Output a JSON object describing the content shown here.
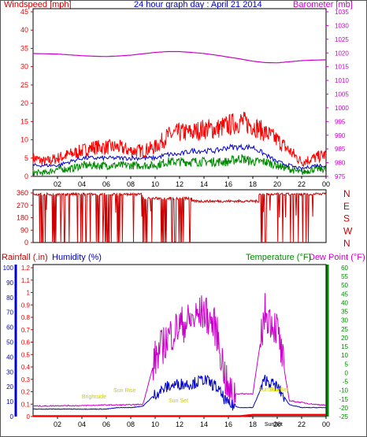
{
  "header": {
    "left_title": "Windspeed [mph]",
    "center_title": "24 hour graph day : April 21 2014",
    "right_title": "Barometer [mb]"
  },
  "colors": {
    "wind_speed": "#ff0000",
    "wind_gust_avg": "#0000cc",
    "wind_green": "#008800",
    "barometer": "#cc00cc",
    "direction": "#cc0000",
    "rainfall": "#ff0000",
    "humidity": "#0000cc",
    "temperature": "#008800",
    "dew_point": "#cc00cc",
    "sun_labels": "#cccc00",
    "background": "#ffffff",
    "panel_border": "#000000"
  },
  "x_axis": {
    "hours": [
      "02",
      "04",
      "06",
      "08",
      "10",
      "12",
      "14",
      "16",
      "18",
      "20",
      "22",
      "00"
    ]
  },
  "chart_data": [
    {
      "type": "line",
      "panel": "wind_barometer",
      "left_axis": {
        "label": "Windspeed [mph]",
        "ticks": [
          "0",
          "5",
          "10",
          "15",
          "20",
          "25",
          "30",
          "35",
          "40",
          "45"
        ],
        "range": [
          0,
          45
        ]
      },
      "right_axis": {
        "label": "Barometer [mb]",
        "ticks": [
          "975",
          "980",
          "985",
          "990",
          "995",
          "1000",
          "1005",
          "1010",
          "1015",
          "1020",
          "1025",
          "1030",
          "1035"
        ],
        "range": [
          975,
          1035
        ]
      },
      "x_hours": [
        0,
        1,
        2,
        3,
        4,
        5,
        6,
        7,
        8,
        9,
        10,
        11,
        12,
        13,
        14,
        15,
        16,
        17,
        18,
        19,
        20,
        21,
        22,
        23,
        24
      ],
      "series": [
        {
          "values": [
            5,
            4,
            5,
            6,
            7,
            8,
            8,
            8,
            7,
            7,
            8,
            11,
            12,
            12,
            13,
            13,
            14,
            15,
            14,
            12,
            10,
            7,
            4,
            5,
            6
          ]
        },
        {
          "values": [
            3,
            3,
            3,
            4,
            5,
            5,
            5,
            5,
            5,
            5,
            5,
            6,
            6,
            7,
            7,
            7,
            8,
            8,
            8,
            6,
            4,
            3,
            2,
            3,
            3
          ]
        },
        {
          "values": [
            1,
            1,
            2,
            2,
            3,
            3,
            3,
            3,
            3,
            3,
            3,
            4,
            4,
            4,
            4,
            4,
            4,
            5,
            4,
            4,
            3,
            2,
            1,
            2,
            2
          ]
        },
        {
          "values": [
            1019.8,
            1019.7,
            1019.6,
            1019.3,
            1019.0,
            1018.8,
            1018.7,
            1018.9,
            1019.2,
            1019.7,
            1020.2,
            1020.5,
            1020.5,
            1020.2,
            1019.8,
            1019.2,
            1018.5,
            1017.8,
            1017.0,
            1016.5,
            1016.4,
            1016.8,
            1017.2,
            1017.4,
            1017.5
          ]
        }
      ]
    },
    {
      "type": "line",
      "panel": "wind_direction",
      "left_axis": {
        "ticks": [
          "0",
          "90",
          "180",
          "270",
          "360"
        ],
        "range": [
          0,
          360
        ]
      },
      "right_axis": {
        "ticks": [
          "N",
          "W",
          "S",
          "E",
          "N"
        ]
      },
      "segments": [
        {
          "from_hour": 0.0,
          "to_hour": 0.5,
          "value": 350
        },
        {
          "from_hour": 0.5,
          "to_hour": 9.0,
          "value": 350,
          "note": "oscillating"
        },
        {
          "from_hour": 9.0,
          "to_hour": 13.0,
          "value": 320,
          "note": "oscillating"
        },
        {
          "from_hour": 13.0,
          "to_hour": 18.5,
          "value": 300
        },
        {
          "from_hour": 18.5,
          "to_hour": 23.0,
          "value": 350,
          "note": "oscillating"
        },
        {
          "from_hour": 23.0,
          "to_hour": 24.0,
          "value": 355
        }
      ]
    },
    {
      "type": "line",
      "panel": "rain_humidity_temp",
      "axes": {
        "rainfall": {
          "label": "Rainfall (.in)",
          "ticks": [
            "0",
            "0.1",
            "0.2",
            "0.3",
            "0.4",
            "0.5",
            "0.6",
            "0.7",
            "0.8",
            "0.9",
            "1",
            "1.1",
            "1.2"
          ],
          "range": [
            0,
            1.2
          ]
        },
        "humidity": {
          "label": "Humidity (%)",
          "ticks": [
            "0",
            "10",
            "20",
            "30",
            "40",
            "50",
            "60",
            "70",
            "80",
            "90",
            "100"
          ],
          "range": [
            0,
            100
          ]
        },
        "temperature": {
          "label": "Temperature (°F)",
          "ticks": [
            "-25",
            "-20",
            "-15",
            "-10",
            "-5",
            "0",
            "5",
            "10",
            "15",
            "20",
            "25",
            "30",
            "35",
            "40",
            "45",
            "50",
            "55",
            "60"
          ],
          "range": [
            -25,
            60
          ]
        },
        "dew_point": {
          "label": "Dew Point (°F)"
        }
      },
      "x_hours": [
        0,
        1,
        2,
        3,
        4,
        5,
        6,
        7,
        8,
        9,
        10,
        11,
        12,
        13,
        14,
        15,
        16,
        17,
        18,
        19,
        20,
        21,
        22,
        23,
        24
      ],
      "series": [
        {
          "values": [
            0,
            0,
            0,
            0,
            0,
            0,
            0,
            0,
            0,
            0,
            0,
            0,
            0,
            0,
            0,
            0,
            0,
            0,
            0.01,
            0.01,
            0.01,
            0.01,
            0.01,
            0.01,
            0.01
          ]
        },
        {
          "values": [
            5,
            5,
            5,
            5,
            5,
            5,
            5,
            6,
            6,
            7,
            15,
            20,
            22,
            22,
            25,
            20,
            8,
            6,
            6,
            25,
            20,
            8,
            6,
            6,
            6
          ]
        },
        {
          "values": [
            -19.0,
            -19.0,
            -18.8,
            -18.8,
            -18.8,
            -18.6,
            -18.4,
            -18.4,
            -18.3,
            -18.0,
            8,
            20,
            27,
            30,
            35,
            25,
            -12,
            -12,
            -12,
            35,
            25,
            -16,
            -17,
            -18,
            -18.5
          ]
        }
      ],
      "annotations": [
        {
          "text": "Brightside",
          "hour": 5.0
        },
        {
          "text": "Sun Rise",
          "hour": 7.5
        },
        {
          "text": "Sun Set",
          "hour": 11.9
        },
        {
          "text": "Sun Rise",
          "hour": 19.4
        },
        {
          "text": "SunSet",
          "hour": 19.7
        },
        {
          "text": "Sun Set",
          "hour": 20.1
        }
      ]
    }
  ],
  "axis_titles": {
    "direction_letters": [
      "N",
      "W",
      "S",
      "E",
      "N"
    ],
    "rain": "Rainfall (.in)",
    "humidity": "Humidity (%)",
    "temperature": "Temperature (°F)",
    "dew_point": "Dew Point (°F)"
  }
}
